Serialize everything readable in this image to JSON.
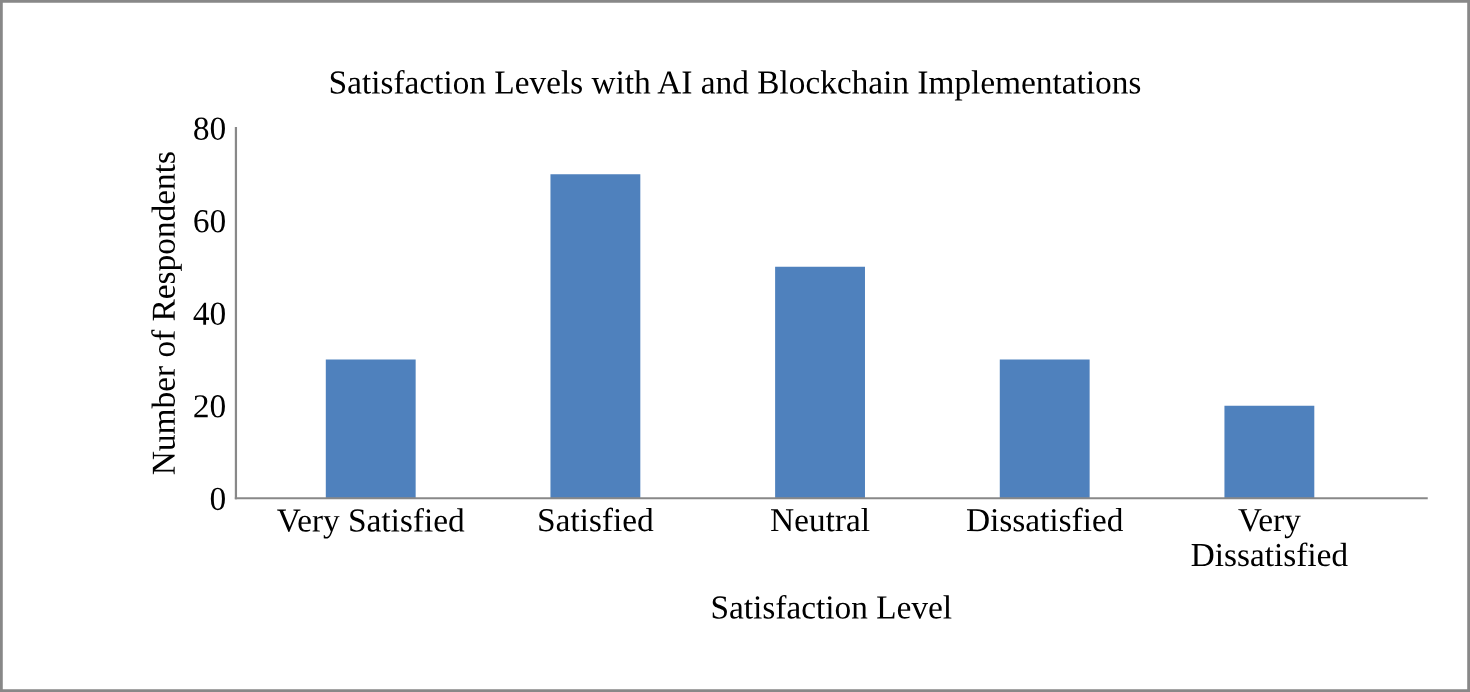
{
  "chart_data": {
    "type": "bar",
    "title": "Satisfaction Levels with AI and Blockchain Implementations",
    "xlabel": "Satisfaction Level",
    "ylabel": "Number of Respondents",
    "categories": [
      "Very Satisfied",
      "Satisfied",
      "Neutral",
      "Dissatisfied",
      "Very\nDissatisfied"
    ],
    "values": [
      30,
      70,
      50,
      30,
      20
    ],
    "color": "#4f81bd",
    "ylim": [
      0,
      80
    ],
    "yticks": [
      0,
      20,
      40,
      60,
      80
    ],
    "grid": false,
    "legend": false
  }
}
